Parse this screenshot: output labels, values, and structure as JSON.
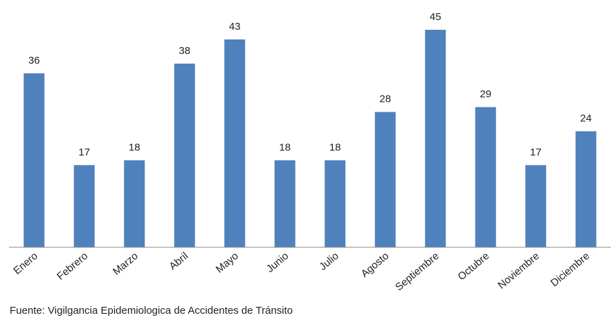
{
  "chart_data": {
    "type": "bar",
    "categories": [
      "Enero",
      "Febrero",
      "Marzo",
      "Abril",
      "Mayo",
      "Junio",
      "Julio",
      "Agosto",
      "Septiembre",
      "Octubre",
      "Noviembre",
      "Diciembre"
    ],
    "values": [
      36,
      17,
      18,
      38,
      43,
      18,
      18,
      28,
      45,
      29,
      17,
      24
    ],
    "color": "#4f81bd",
    "source": "Fuente: Vigilgancia Epidemiologica de Accidentes de  Tránsito"
  }
}
